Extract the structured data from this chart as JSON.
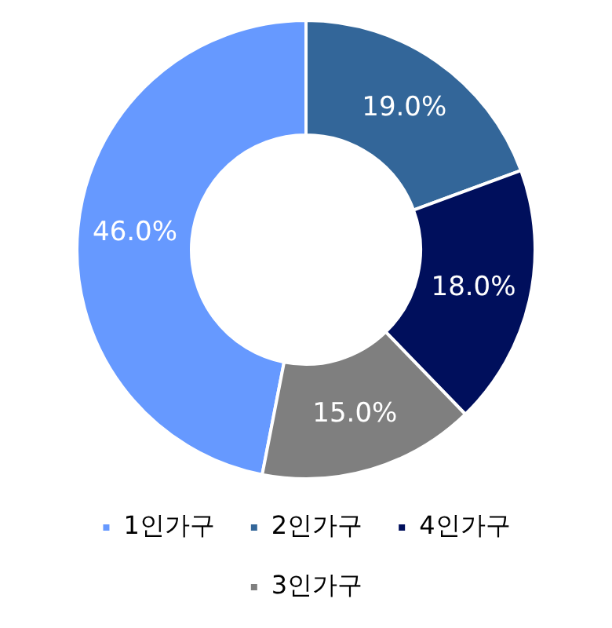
{
  "chart_data": {
    "type": "donut",
    "categories": [
      "1인가구",
      "2인가구",
      "4인가구",
      "3인가구"
    ],
    "values": [
      46,
      19,
      18,
      15
    ],
    "colors": [
      "#6699ff",
      "#336699",
      "#000f5c",
      "#7f7f7f"
    ],
    "value_labels": [
      "46.0%",
      "19.0%",
      "18.0%",
      "15.0%"
    ],
    "legend": "bottom"
  }
}
